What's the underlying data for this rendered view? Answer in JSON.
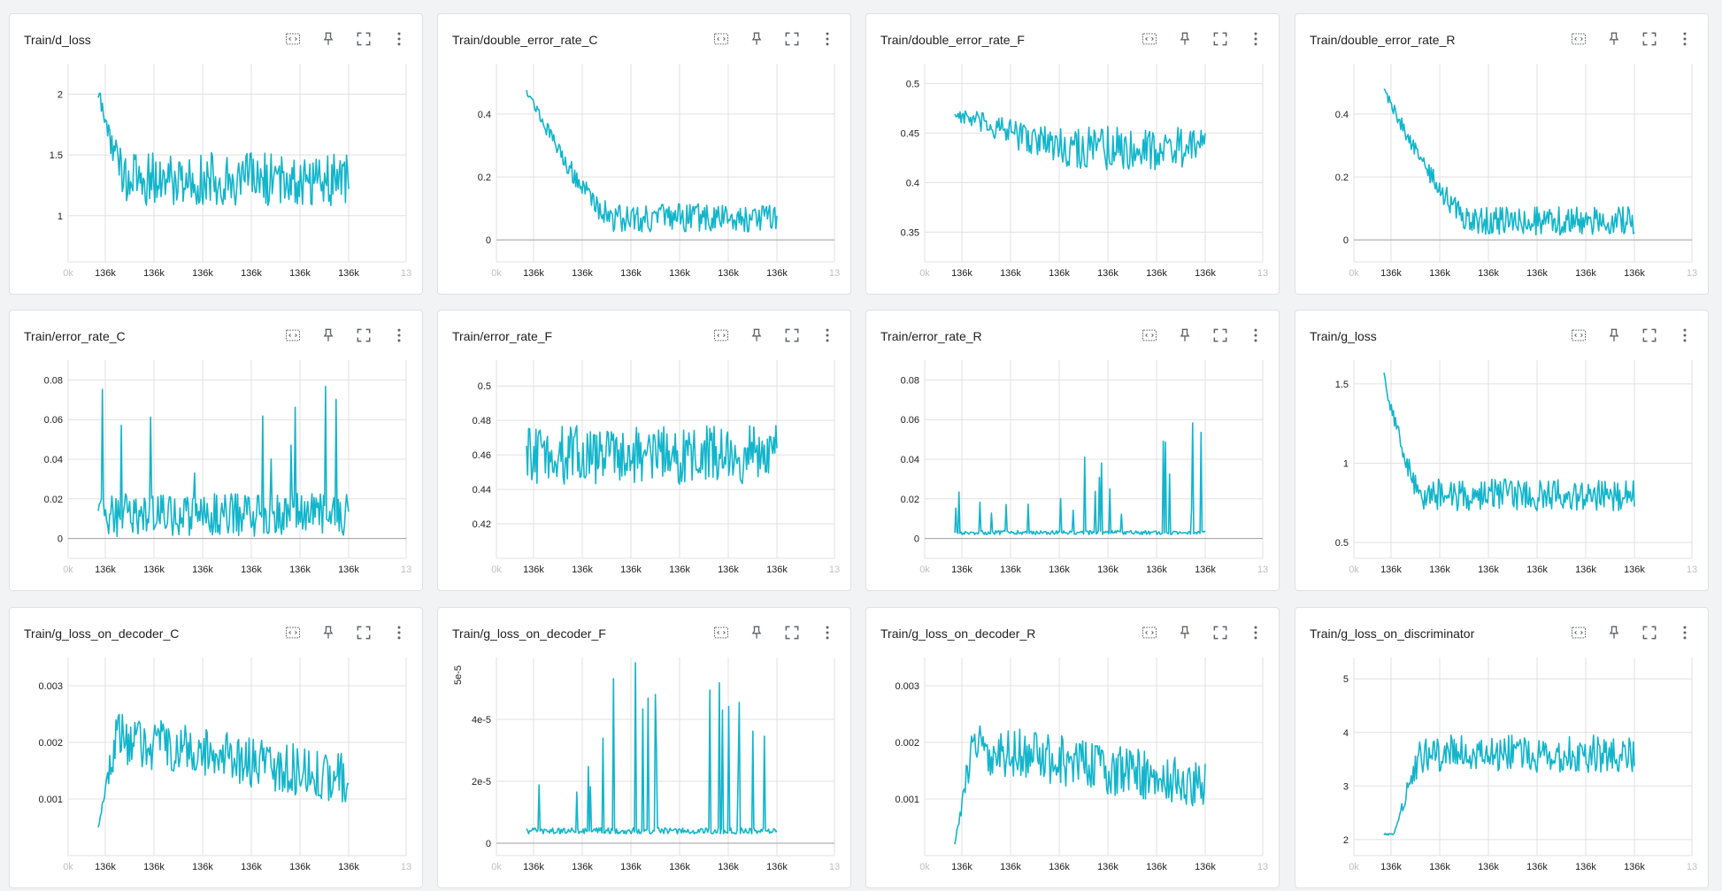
{
  "colors": {
    "series": "#12b5cb",
    "grid": "#e0e0e0",
    "axis": "#9e9e9e",
    "icon": "#5f6368"
  },
  "toolbar_icons": [
    "fit-to-data-icon",
    "pin-icon",
    "fullscreen-icon",
    "more-vert-icon"
  ],
  "x_tick_labels": [
    "136k",
    "136k",
    "136k",
    "136k",
    "136k",
    "136k"
  ],
  "x_edge_labels": {
    "left": "0k",
    "right": "13"
  },
  "charts": [
    {
      "title": "Train/d_loss",
      "chart_data": {
        "type": "line",
        "title": "Train/d_loss",
        "y_ticks": [
          "1",
          "1.5",
          "2"
        ],
        "ylim": [
          0.62,
          2.25
        ],
        "start": 2.0,
        "mean": 1.3,
        "mean_early": 1.85,
        "noise": 0.22,
        "decay": 0.12,
        "shape": "decay"
      }
    },
    {
      "title": "Train/double_error_rate_C",
      "chart_data": {
        "type": "line",
        "title": "Train/double_error_rate_C",
        "y_ticks": [
          "0",
          "0.2",
          "0.4"
        ],
        "ylim": [
          -0.07,
          0.56
        ],
        "start": 0.48,
        "mean": 0.07,
        "noise": 0.045,
        "decay": 0.35,
        "shape": "decay"
      }
    },
    {
      "title": "Train/double_error_rate_F",
      "chart_data": {
        "type": "line",
        "title": "Train/double_error_rate_F",
        "y_ticks": [
          "0.35",
          "0.4",
          "0.45",
          "0.5"
        ],
        "ylim": [
          0.32,
          0.52
        ],
        "start": 0.47,
        "mean": 0.435,
        "noise": 0.022,
        "decay": 0.5,
        "shape": "decay"
      }
    },
    {
      "title": "Train/double_error_rate_R",
      "chart_data": {
        "type": "line",
        "title": "Train/double_error_rate_R",
        "y_ticks": [
          "0",
          "0.2",
          "0.4"
        ],
        "ylim": [
          -0.07,
          0.56
        ],
        "start": 0.48,
        "mean": 0.06,
        "noise": 0.045,
        "decay": 0.35,
        "shape": "decay"
      }
    },
    {
      "title": "Train/error_rate_C",
      "chart_data": {
        "type": "line",
        "title": "Train/error_rate_C",
        "y_ticks": [
          "0",
          "0.02",
          "0.04",
          "0.06",
          "0.08"
        ],
        "ylim": [
          -0.01,
          0.09
        ],
        "start": 0.01,
        "mean": 0.012,
        "noise": 0.011,
        "decay": 0.0,
        "shape": "spiky"
      }
    },
    {
      "title": "Train/error_rate_F",
      "chart_data": {
        "type": "line",
        "title": "Train/error_rate_F",
        "y_ticks": [
          "0.42",
          "0.44",
          "0.46",
          "0.48",
          "0.5"
        ],
        "ylim": [
          0.4,
          0.515
        ],
        "start": 0.47,
        "mean": 0.46,
        "noise": 0.017,
        "decay": 0.0,
        "shape": "flat"
      }
    },
    {
      "title": "Train/error_rate_R",
      "chart_data": {
        "type": "line",
        "title": "Train/error_rate_R",
        "y_ticks": [
          "0",
          "0.02",
          "0.04",
          "0.06",
          "0.08"
        ],
        "ylim": [
          -0.01,
          0.09
        ],
        "start": 0.002,
        "mean": 0.002,
        "noise": 0.004,
        "decay": 0.0,
        "shape": "rarespike"
      }
    },
    {
      "title": "Train/g_loss",
      "chart_data": {
        "type": "line",
        "title": "Train/g_loss",
        "y_ticks": [
          "0.5",
          "1",
          "1.5"
        ],
        "ylim": [
          0.4,
          1.65
        ],
        "start": 1.55,
        "mean": 0.8,
        "noise": 0.1,
        "decay": 0.15,
        "shape": "decay"
      }
    },
    {
      "title": "Train/g_loss_on_decoder_C",
      "chart_data": {
        "type": "line",
        "title": "Train/g_loss_on_decoder_C",
        "y_ticks": [
          "0.001",
          "0.002",
          "0.003"
        ],
        "ylim": [
          0.0,
          0.0035
        ],
        "start": 0.0005,
        "mean": 0.0013,
        "noise": 0.00045,
        "decay": 0.0,
        "shape": "risefall"
      }
    },
    {
      "title": "Train/g_loss_on_decoder_F",
      "chart_data": {
        "type": "line",
        "title": "Train/g_loss_on_decoder_F",
        "y_ticks": [
          "0",
          "2e-5",
          "4e-5"
        ],
        "y_unit_label": "5e-5",
        "ylim": [
          -4e-06,
          6e-05
        ],
        "start": 2e-06,
        "mean": 3e-06,
        "noise": 4e-06,
        "decay": 0.0,
        "shape": "rarespike"
      }
    },
    {
      "title": "Train/g_loss_on_decoder_R",
      "chart_data": {
        "type": "line",
        "title": "Train/g_loss_on_decoder_R",
        "y_ticks": [
          "0.001",
          "0.002",
          "0.003"
        ],
        "ylim": [
          0.0,
          0.0035
        ],
        "start": 0.0002,
        "mean": 0.0012,
        "noise": 0.00045,
        "decay": 0.0,
        "shape": "risefall"
      }
    },
    {
      "title": "Train/g_loss_on_discriminator",
      "chart_data": {
        "type": "line",
        "title": "Train/g_loss_on_discriminator",
        "y_ticks": [
          "2",
          "3",
          "4",
          "5"
        ],
        "ylim": [
          1.7,
          5.4
        ],
        "start": 2.1,
        "mean": 3.6,
        "noise": 0.35,
        "decay": 0.0,
        "shape": "rise"
      }
    }
  ]
}
